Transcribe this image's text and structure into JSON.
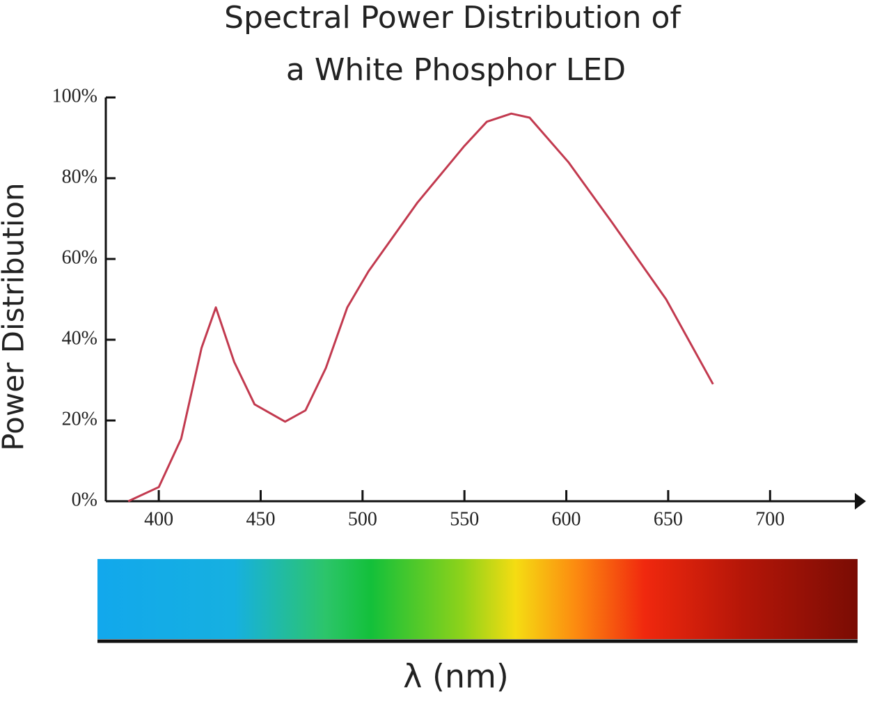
{
  "chart_data": {
    "type": "line",
    "title": [
      "Spectral Power Distribution of",
      "a White Phosphor LED"
    ],
    "y_label": "Power Distribution",
    "x_label": "λ (nm)",
    "x": [
      385,
      400,
      411,
      421,
      428,
      437,
      447,
      462,
      472,
      482,
      492.5,
      503,
      527,
      550,
      561,
      573,
      582,
      601,
      622.5,
      649,
      672
    ],
    "series": [
      {
        "color": "#c23a4f",
        "values": [
          0,
          3.5,
          15.5,
          38,
          48,
          34.5,
          24,
          19.7,
          22.5,
          33,
          48,
          57,
          74,
          88,
          94,
          96,
          95,
          84,
          69,
          50,
          29
        ]
      }
    ],
    "xlim": [
      374,
      745
    ],
    "ylim": [
      0,
      100
    ],
    "xticks": [
      400,
      450,
      500,
      550,
      600,
      650,
      700
    ],
    "yticks": [
      {
        "value": 0,
        "label": "0%"
      },
      {
        "value": 20,
        "label": "20%"
      },
      {
        "value": 40,
        "label": "40%"
      },
      {
        "value": 60,
        "label": "60%"
      },
      {
        "value": 80,
        "label": "80%"
      },
      {
        "value": 100,
        "label": "100%"
      }
    ]
  }
}
